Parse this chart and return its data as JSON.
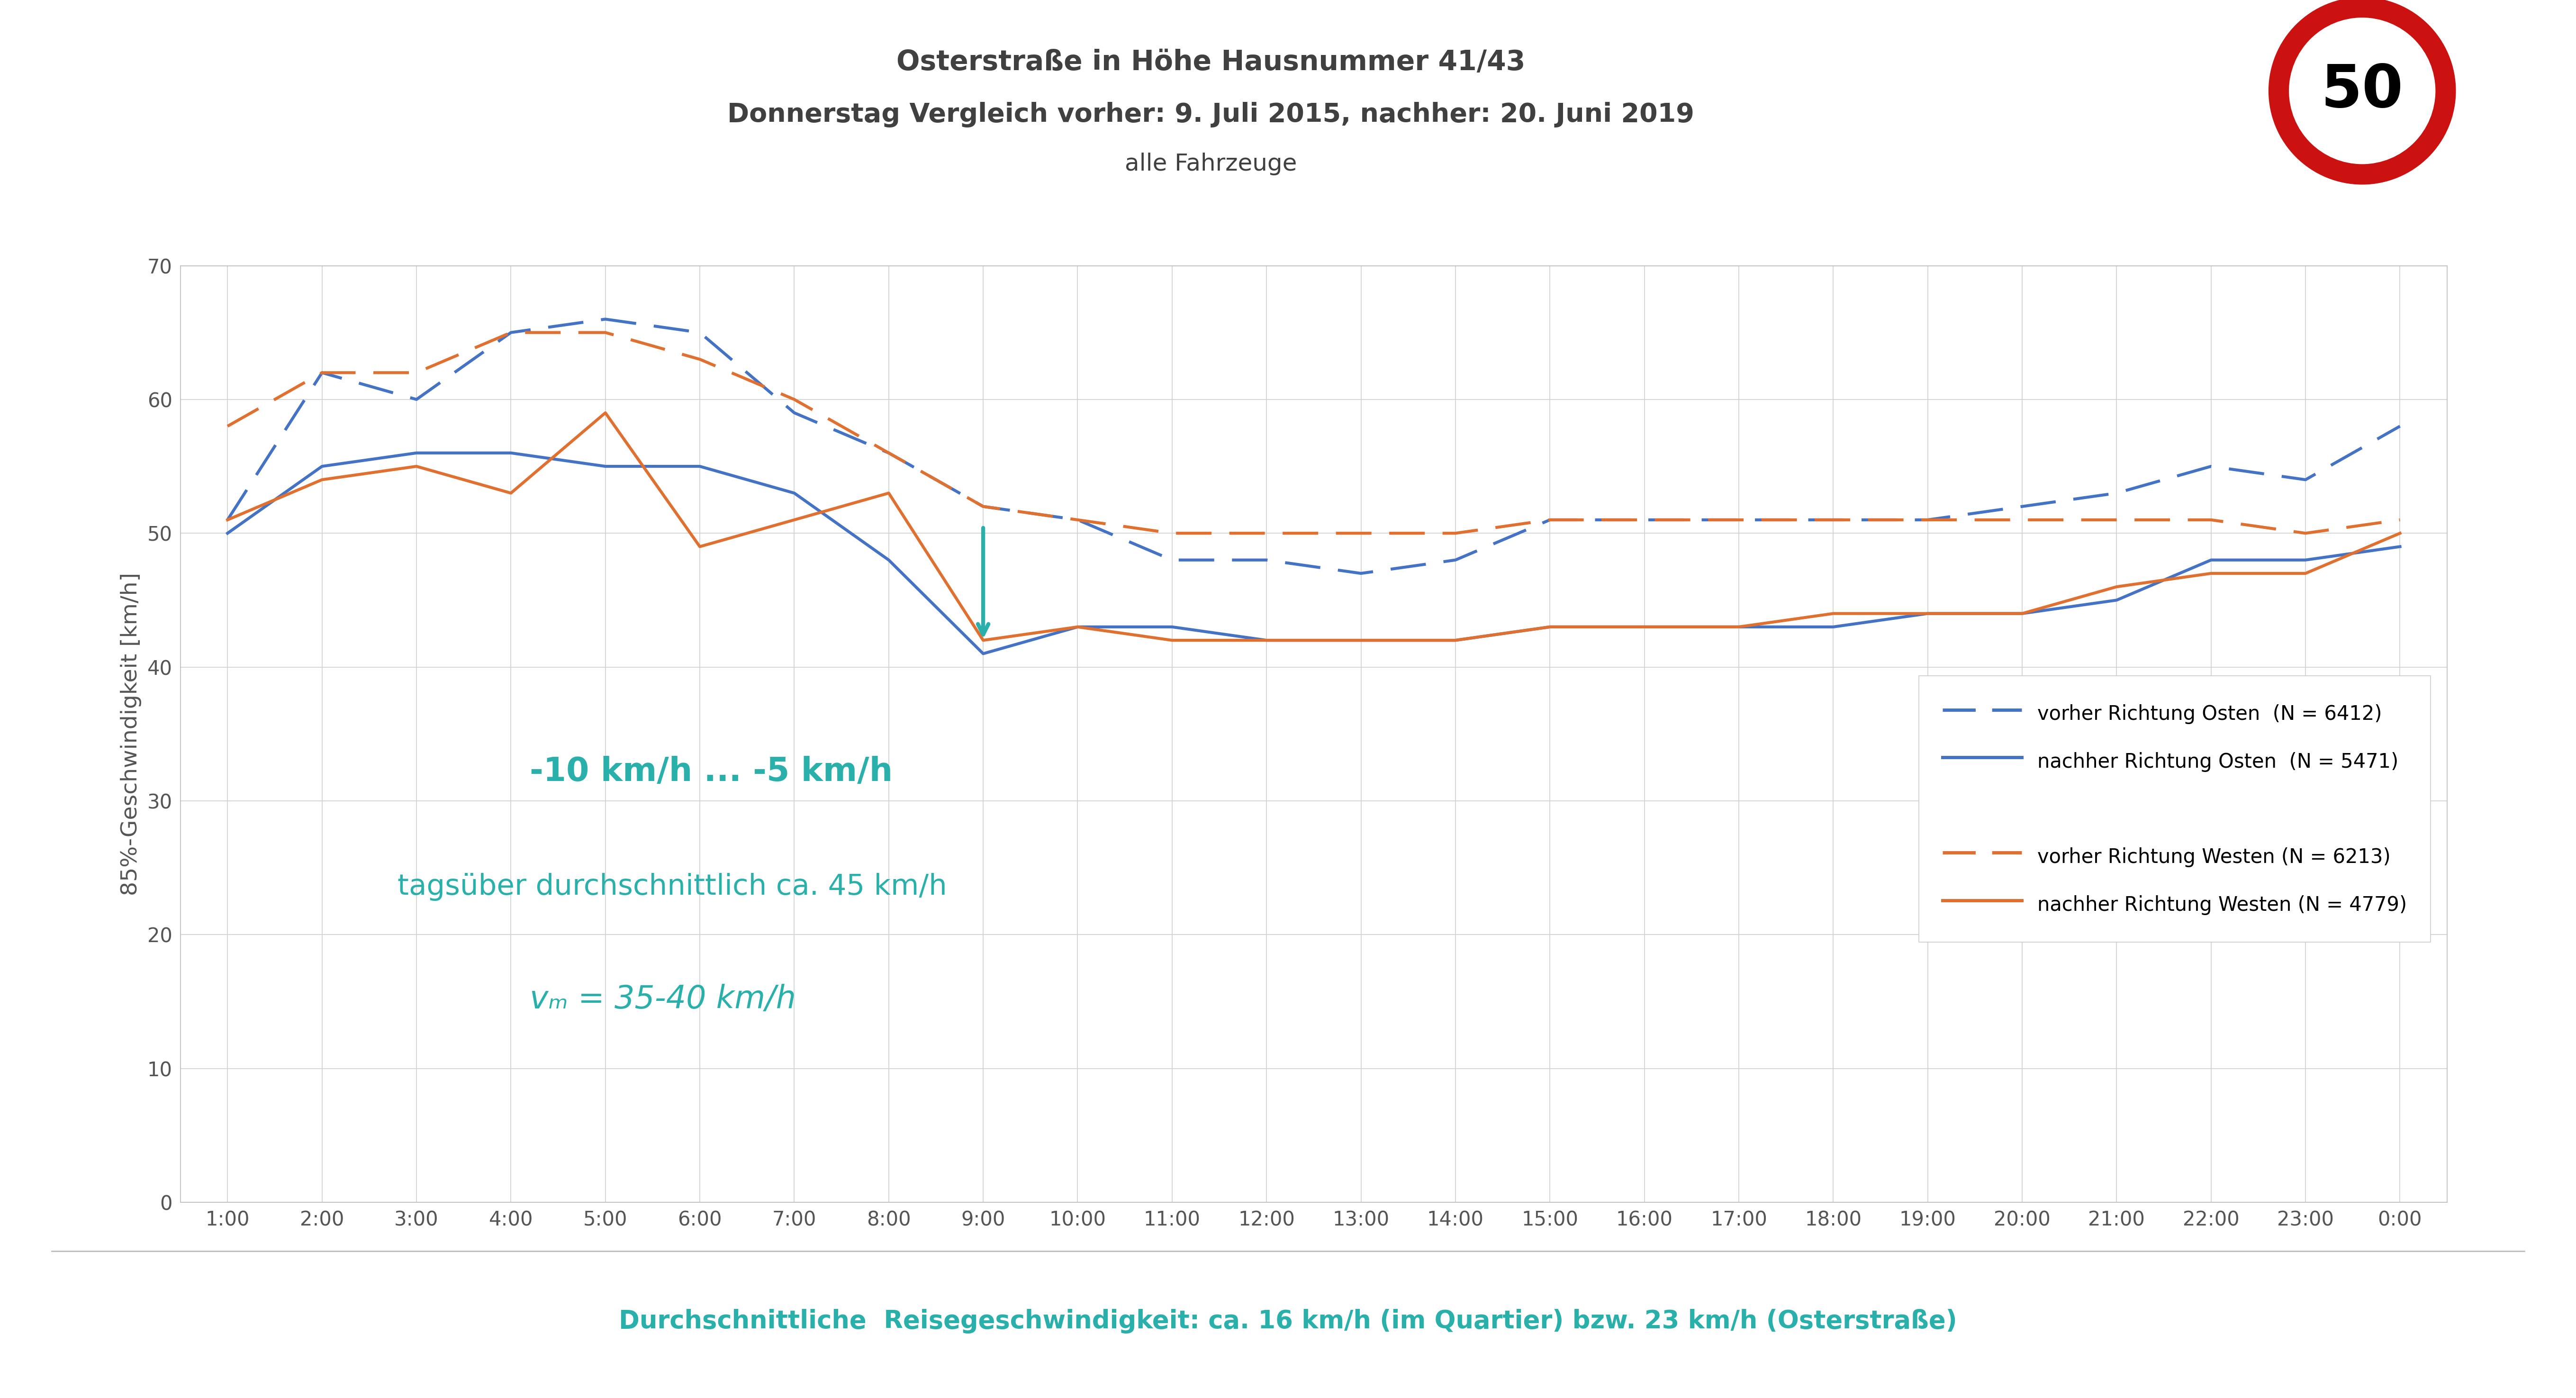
{
  "title_line1": "Osterstraße in Höhe Hausnummer 41/43",
  "title_line2": "Donnerstag Vergleich vorher: 9. Juli 2015, nachher: 20. Juni 2019",
  "title_line3": "alle Fahrzeuge",
  "ylabel": "85%-Geschwindigkeit [km/h]",
  "footer": "Durchschnittliche  Reisegeschwindigkeit: ca. 16 km/h (im Quartier) bzw. 23 km/h (Osterstraße)",
  "ylim": [
    0,
    70
  ],
  "yticks": [
    0,
    10,
    20,
    30,
    40,
    50,
    60,
    70
  ],
  "annotation_line1": "-10 km/h ... -5 km/h",
  "annotation_line2": "tagsüber durchschnittlich ca. 45 km/h",
  "annotation_line3": "vₘ = 35-40 km/h",
  "annotation_color": "#2ab0ab",
  "legend_entries": [
    {
      "label": "vorher Richtung Osten  (N = 6412)",
      "color": "#4472c4",
      "linestyle": "dashed"
    },
    {
      "label": "nachher Richtung Osten  (N = 5471)",
      "color": "#4472c4",
      "linestyle": "solid"
    },
    {
      "label": "vorher Richtung Westen (N = 6213)",
      "color": "#e07030",
      "linestyle": "dashed"
    },
    {
      "label": "nachher Richtung Westen (N = 4779)",
      "color": "#e07030",
      "linestyle": "solid"
    }
  ],
  "x_hours": [
    1,
    2,
    3,
    4,
    5,
    6,
    7,
    8,
    9,
    10,
    11,
    12,
    13,
    14,
    15,
    16,
    17,
    18,
    19,
    20,
    21,
    22,
    23,
    24
  ],
  "vorher_osten": [
    51,
    62,
    60,
    65,
    66,
    65,
    59,
    56,
    52,
    51,
    48,
    48,
    47,
    48,
    51,
    51,
    51,
    51,
    51,
    52,
    53,
    55,
    54,
    58
  ],
  "nachher_osten": [
    50,
    55,
    56,
    56,
    55,
    55,
    53,
    48,
    41,
    43,
    43,
    42,
    42,
    42,
    43,
    43,
    43,
    43,
    44,
    44,
    45,
    48,
    48,
    49
  ],
  "vorher_westen": [
    58,
    62,
    62,
    65,
    65,
    63,
    60,
    56,
    52,
    51,
    50,
    50,
    50,
    50,
    51,
    51,
    51,
    51,
    51,
    51,
    51,
    51,
    50,
    51
  ],
  "nachher_westen": [
    51,
    54,
    55,
    53,
    59,
    49,
    51,
    53,
    42,
    43,
    42,
    42,
    42,
    42,
    43,
    43,
    43,
    44,
    44,
    44,
    46,
    47,
    47,
    50
  ],
  "line_color_blue": "#4472c4",
  "line_color_orange": "#e07030",
  "line_width": 4.5,
  "background_color": "#ffffff",
  "grid_color": "#d0d0d0",
  "footer_color": "#2ab0ab",
  "title_color": "#404040"
}
